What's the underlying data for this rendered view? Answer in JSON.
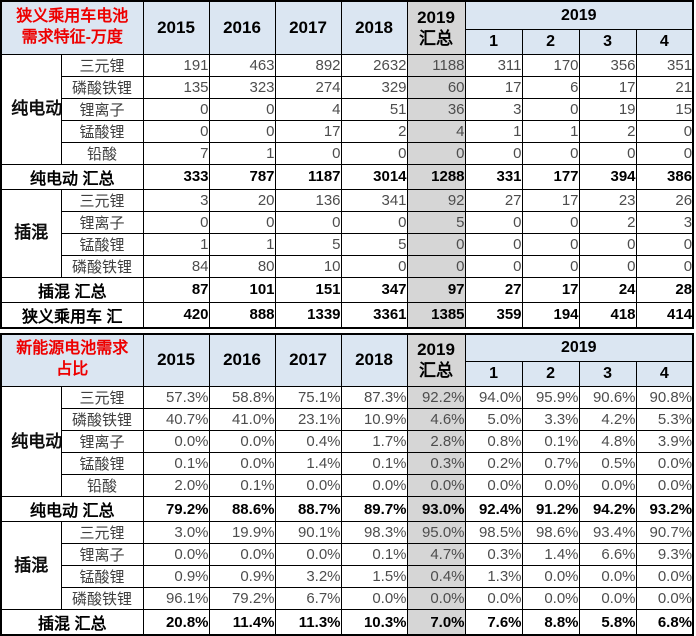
{
  "colors": {
    "header_bg": "#dbe6f2",
    "summary_col_bg": "#d6d6d6",
    "title_red": "#ee0000",
    "border": "#000000",
    "value_gray": "#4d4d4d"
  },
  "header": {
    "years": [
      "2015",
      "2016",
      "2017",
      "2018"
    ],
    "summary_lines": [
      "2019",
      "汇总"
    ],
    "quarter_group": "2019",
    "quarters": [
      "1",
      "2",
      "3",
      "4"
    ]
  },
  "chart_data": [
    {
      "type": "table",
      "name": "battery-demand",
      "title": "狭义乘用车电池需求特征-万度",
      "title_lines": [
        "狭义乘用车电池",
        "需求特征-万度"
      ],
      "columns": [
        "2015",
        "2016",
        "2017",
        "2018",
        "2019汇总",
        "2019-1",
        "2019-2",
        "2019-3",
        "2019-4"
      ],
      "sections": [
        {
          "group": "纯电动",
          "rows": [
            {
              "label": "三元锂",
              "values": [
                191,
                463,
                892,
                2632,
                1188,
                311,
                170,
                356,
                351
              ]
            },
            {
              "label": "磷酸铁锂",
              "values": [
                135,
                323,
                274,
                329,
                60,
                17,
                6,
                17,
                21
              ]
            },
            {
              "label": "锂离子",
              "values": [
                0,
                0,
                4,
                51,
                36,
                3,
                0,
                19,
                15
              ]
            },
            {
              "label": "锰酸锂",
              "values": [
                0,
                0,
                17,
                2,
                4,
                1,
                1,
                2,
                0
              ]
            },
            {
              "label": "铅酸",
              "values": [
                7,
                1,
                0,
                0,
                0,
                0,
                0,
                0,
                0
              ]
            }
          ],
          "total": {
            "label": "纯电动 汇总",
            "values": [
              333,
              787,
              1187,
              3014,
              1288,
              331,
              177,
              394,
              386
            ]
          }
        },
        {
          "group": "插混",
          "rows": [
            {
              "label": "三元锂",
              "values": [
                3,
                20,
                136,
                341,
                92,
                27,
                17,
                23,
                26
              ]
            },
            {
              "label": "锂离子",
              "values": [
                0,
                0,
                0,
                0,
                5,
                0,
                0,
                2,
                3
              ]
            },
            {
              "label": "锰酸锂",
              "values": [
                1,
                1,
                5,
                5,
                0,
                0,
                0,
                0,
                0
              ]
            },
            {
              "label": "磷酸铁锂",
              "values": [
                84,
                80,
                10,
                0,
                0,
                0,
                0,
                0,
                0
              ]
            }
          ],
          "total": {
            "label": "插混 汇总",
            "values": [
              87,
              101,
              151,
              347,
              97,
              27,
              17,
              24,
              28
            ]
          }
        }
      ],
      "grand_total": {
        "label": "狭义乘用车 汇",
        "values": [
          420,
          888,
          1339,
          3361,
          1385,
          359,
          194,
          418,
          414
        ]
      }
    },
    {
      "type": "table",
      "name": "demand-share",
      "title": "新能源电池需求占比",
      "title_lines": [
        "新能源电池需求",
        "占比"
      ],
      "columns": [
        "2015",
        "2016",
        "2017",
        "2018",
        "2019汇总",
        "2019-1",
        "2019-2",
        "2019-3",
        "2019-4"
      ],
      "sections": [
        {
          "group": "纯电动",
          "rows": [
            {
              "label": "三元锂",
              "values": [
                "57.3%",
                "58.8%",
                "75.1%",
                "87.3%",
                "92.2%",
                "94.0%",
                "95.9%",
                "90.6%",
                "90.8%"
              ]
            },
            {
              "label": "磷酸铁锂",
              "values": [
                "40.7%",
                "41.0%",
                "23.1%",
                "10.9%",
                "4.6%",
                "5.0%",
                "3.3%",
                "4.2%",
                "5.3%"
              ]
            },
            {
              "label": "锂离子",
              "values": [
                "0.0%",
                "0.0%",
                "0.4%",
                "1.7%",
                "2.8%",
                "0.8%",
                "0.1%",
                "4.8%",
                "3.9%"
              ]
            },
            {
              "label": "锰酸锂",
              "values": [
                "0.1%",
                "0.0%",
                "1.4%",
                "0.1%",
                "0.3%",
                "0.2%",
                "0.7%",
                "0.5%",
                "0.0%"
              ]
            },
            {
              "label": "铅酸",
              "values": [
                "2.0%",
                "0.1%",
                "0.0%",
                "0.0%",
                "0.0%",
                "0.0%",
                "0.0%",
                "0.0%",
                "0.0%"
              ]
            }
          ],
          "total": {
            "label": "纯电动 汇总",
            "values": [
              "79.2%",
              "88.6%",
              "88.7%",
              "89.7%",
              "93.0%",
              "92.4%",
              "91.2%",
              "94.2%",
              "93.2%"
            ]
          }
        },
        {
          "group": "插混",
          "rows": [
            {
              "label": "三元锂",
              "values": [
                "3.0%",
                "19.9%",
                "90.1%",
                "98.3%",
                "95.0%",
                "98.5%",
                "98.6%",
                "93.4%",
                "90.7%"
              ]
            },
            {
              "label": "锂离子",
              "values": [
                "0.0%",
                "0.0%",
                "0.0%",
                "0.1%",
                "4.7%",
                "0.3%",
                "1.4%",
                "6.6%",
                "9.3%"
              ]
            },
            {
              "label": "锰酸锂",
              "values": [
                "0.9%",
                "0.9%",
                "3.2%",
                "1.5%",
                "0.4%",
                "1.3%",
                "0.0%",
                "0.0%",
                "0.0%"
              ]
            },
            {
              "label": "磷酸铁锂",
              "values": [
                "96.1%",
                "79.2%",
                "6.7%",
                "0.0%",
                "0.0%",
                "0.0%",
                "0.0%",
                "0.0%",
                "0.0%"
              ]
            }
          ],
          "total": {
            "label": "插混 汇总",
            "values": [
              "20.8%",
              "11.4%",
              "11.3%",
              "10.3%",
              "7.0%",
              "7.6%",
              "8.8%",
              "5.8%",
              "6.8%"
            ]
          }
        }
      ],
      "grand_total": null
    }
  ]
}
